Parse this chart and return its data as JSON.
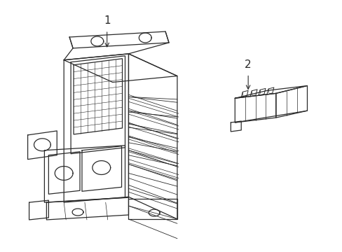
{
  "background_color": "#ffffff",
  "line_color": "#2a2a2a",
  "line_width": 0.9,
  "label1": "1",
  "label2": "2",
  "figsize": [
    4.89,
    3.6
  ],
  "dpi": 100
}
